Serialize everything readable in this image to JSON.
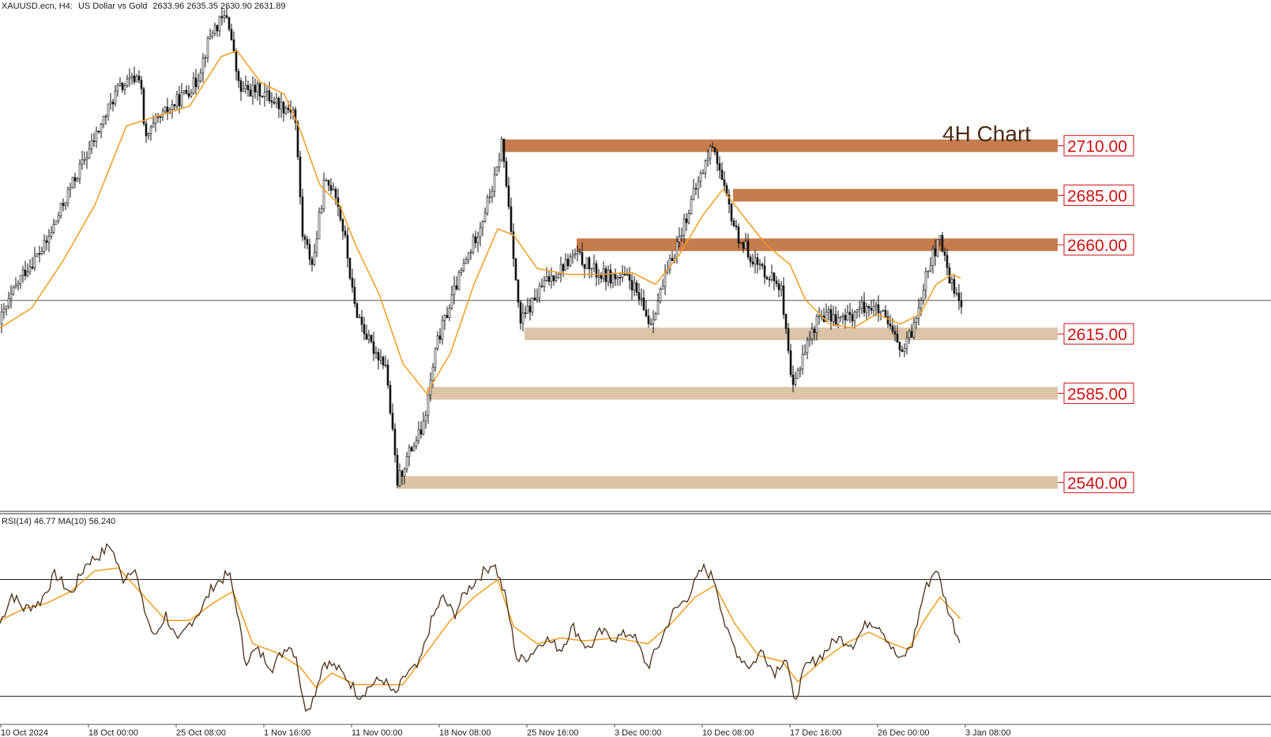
{
  "header": {
    "symbol": "XAUUSD.ecn, H4:",
    "description": "US Dollar vs Gold",
    "ohlc": "2633.96 2635.35 2630.90 2631.89"
  },
  "chart_title": "4H Chart",
  "chart_data": [
    {
      "type": "candlestick",
      "title": "4H Chart",
      "symbol": "XAUUSD.ecn",
      "timeframe": "H4",
      "ylim": [
        2527,
        2778
      ],
      "price_line": 2631.89,
      "ohlc_last": {
        "open": 2633.96,
        "high": 2635.35,
        "low": 2630.9,
        "close": 2631.89
      },
      "ma_color": "#f39c1e",
      "candle_color": "#111111",
      "x_tick_labels": [
        "10 Oct 2024",
        "18 Oct 00:00",
        "25 Oct 08:00",
        "1 Nov 16:00",
        "11 Nov 00:00",
        "18 Nov 08:00",
        "25 Nov 16:00",
        "3 Dec 00:00",
        "10 Dec 08:00",
        "17 Dec 16:00",
        "26 Dec 00:00",
        "3 Jan 08:00"
      ],
      "price_path": [
        [
          0,
          2620
        ],
        [
          30,
          2645
        ],
        [
          60,
          2660
        ],
        [
          90,
          2688
        ],
        [
          120,
          2712
        ],
        [
          150,
          2738
        ],
        [
          180,
          2746
        ],
        [
          185,
          2712
        ],
        [
          200,
          2722
        ],
        [
          220,
          2730
        ],
        [
          250,
          2742
        ],
        [
          270,
          2768
        ],
        [
          290,
          2776
        ],
        [
          305,
          2738
        ],
        [
          330,
          2738
        ],
        [
          360,
          2730
        ],
        [
          375,
          2728
        ],
        [
          385,
          2665
        ],
        [
          398,
          2650
        ],
        [
          412,
          2690
        ],
        [
          425,
          2690
        ],
        [
          440,
          2660
        ],
        [
          450,
          2630
        ],
        [
          470,
          2610
        ],
        [
          490,
          2600
        ],
        [
          505,
          2540
        ],
        [
          520,
          2555
        ],
        [
          538,
          2568
        ],
        [
          555,
          2610
        ],
        [
          580,
          2640
        ],
        [
          610,
          2670
        ],
        [
          630,
          2695
        ],
        [
          637,
          2712
        ],
        [
          650,
          2665
        ],
        [
          660,
          2620
        ],
        [
          690,
          2640
        ],
        [
          730,
          2655
        ],
        [
          760,
          2645
        ],
        [
          800,
          2642
        ],
        [
          825,
          2620
        ],
        [
          850,
          2650
        ],
        [
          880,
          2685
        ],
        [
          905,
          2712
        ],
        [
          918,
          2688
        ],
        [
          935,
          2665
        ],
        [
          960,
          2650
        ],
        [
          990,
          2640
        ],
        [
          1005,
          2585
        ],
        [
          1018,
          2605
        ],
        [
          1040,
          2625
        ],
        [
          1070,
          2622
        ],
        [
          1100,
          2630
        ],
        [
          1118,
          2625
        ],
        [
          1145,
          2605
        ],
        [
          1160,
          2620
        ],
        [
          1175,
          2648
        ],
        [
          1192,
          2662
        ],
        [
          1205,
          2642
        ],
        [
          1217,
          2632
        ]
      ],
      "ma_path": [
        [
          0,
          2618
        ],
        [
          40,
          2628
        ],
        [
          80,
          2652
        ],
        [
          120,
          2680
        ],
        [
          160,
          2720
        ],
        [
          200,
          2725
        ],
        [
          240,
          2730
        ],
        [
          280,
          2755
        ],
        [
          300,
          2758
        ],
        [
          330,
          2742
        ],
        [
          360,
          2736
        ],
        [
          380,
          2718
        ],
        [
          405,
          2690
        ],
        [
          430,
          2680
        ],
        [
          450,
          2660
        ],
        [
          480,
          2635
        ],
        [
          510,
          2600
        ],
        [
          540,
          2585
        ],
        [
          570,
          2605
        ],
        [
          600,
          2640
        ],
        [
          630,
          2668
        ],
        [
          650,
          2665
        ],
        [
          680,
          2648
        ],
        [
          720,
          2645
        ],
        [
          760,
          2645
        ],
        [
          800,
          2646
        ],
        [
          830,
          2640
        ],
        [
          860,
          2655
        ],
        [
          890,
          2675
        ],
        [
          915,
          2688
        ],
        [
          940,
          2675
        ],
        [
          970,
          2660
        ],
        [
          1000,
          2650
        ],
        [
          1020,
          2632
        ],
        [
          1050,
          2620
        ],
        [
          1080,
          2618
        ],
        [
          1110,
          2625
        ],
        [
          1140,
          2620
        ],
        [
          1165,
          2625
        ],
        [
          1185,
          2640
        ],
        [
          1205,
          2645
        ],
        [
          1217,
          2643
        ]
      ],
      "levels": [
        {
          "label": "2710.00",
          "value": 2710,
          "x_start": 636,
          "color": "#c67c4e"
        },
        {
          "label": "2685.00",
          "value": 2685,
          "x_start": 928,
          "color": "#c67c4e"
        },
        {
          "label": "2660.00",
          "value": 2660,
          "x_start": 730,
          "color": "#c67c4e"
        },
        {
          "label": "2615.00",
          "value": 2615,
          "x_start": 664,
          "color": "#dbc4a8"
        },
        {
          "label": "2585.00",
          "value": 2585,
          "x_start": 540,
          "color": "#dbc4a8"
        },
        {
          "label": "2540.00",
          "value": 2540,
          "x_start": 503,
          "color": "#dbc4a8"
        }
      ]
    },
    {
      "type": "line",
      "title": "RSI(14) 46.77 MA(10) 56.240",
      "rsi_value": 46.77,
      "ma_value": 56.24,
      "ylim": [
        22,
        88
      ],
      "levels": [
        70,
        30
      ],
      "rsi_color": "#4a2e17",
      "ma_color": "#f39c1e",
      "rsi_path": [
        [
          0,
          55
        ],
        [
          15,
          65
        ],
        [
          30,
          60
        ],
        [
          50,
          62
        ],
        [
          70,
          72
        ],
        [
          90,
          65
        ],
        [
          110,
          76
        ],
        [
          125,
          78
        ],
        [
          140,
          82
        ],
        [
          155,
          70
        ],
        [
          170,
          75
        ],
        [
          180,
          62
        ],
        [
          195,
          50
        ],
        [
          210,
          58
        ],
        [
          225,
          48
        ],
        [
          240,
          55
        ],
        [
          255,
          60
        ],
        [
          270,
          68
        ],
        [
          290,
          72
        ],
        [
          300,
          60
        ],
        [
          310,
          42
        ],
        [
          325,
          46
        ],
        [
          345,
          40
        ],
        [
          365,
          48
        ],
        [
          375,
          44
        ],
        [
          385,
          26
        ],
        [
          395,
          28
        ],
        [
          410,
          42
        ],
        [
          425,
          40
        ],
        [
          440,
          36
        ],
        [
          455,
          30
        ],
        [
          470,
          34
        ],
        [
          485,
          36
        ],
        [
          500,
          30
        ],
        [
          515,
          38
        ],
        [
          530,
          40
        ],
        [
          545,
          55
        ],
        [
          560,
          64
        ],
        [
          575,
          58
        ],
        [
          590,
          66
        ],
        [
          610,
          72
        ],
        [
          625,
          76
        ],
        [
          640,
          64
        ],
        [
          655,
          42
        ],
        [
          670,
          44
        ],
        [
          690,
          50
        ],
        [
          710,
          46
        ],
        [
          725,
          54
        ],
        [
          745,
          46
        ],
        [
          760,
          52
        ],
        [
          780,
          50
        ],
        [
          800,
          52
        ],
        [
          820,
          40
        ],
        [
          835,
          48
        ],
        [
          850,
          58
        ],
        [
          870,
          64
        ],
        [
          890,
          74
        ],
        [
          905,
          70
        ],
        [
          920,
          52
        ],
        [
          935,
          44
        ],
        [
          950,
          40
        ],
        [
          965,
          46
        ],
        [
          980,
          38
        ],
        [
          995,
          44
        ],
        [
          1005,
          28
        ],
        [
          1020,
          40
        ],
        [
          1040,
          44
        ],
        [
          1060,
          50
        ],
        [
          1080,
          48
        ],
        [
          1100,
          56
        ],
        [
          1115,
          54
        ],
        [
          1130,
          46
        ],
        [
          1140,
          42
        ],
        [
          1155,
          48
        ],
        [
          1170,
          66
        ],
        [
          1185,
          74
        ],
        [
          1200,
          60
        ],
        [
          1217,
          46.77
        ]
      ],
      "ma_path": [
        [
          0,
          56
        ],
        [
          30,
          60
        ],
        [
          60,
          62
        ],
        [
          90,
          66
        ],
        [
          120,
          73
        ],
        [
          150,
          74
        ],
        [
          180,
          65
        ],
        [
          210,
          56
        ],
        [
          240,
          56
        ],
        [
          270,
          62
        ],
        [
          295,
          66
        ],
        [
          320,
          48
        ],
        [
          350,
          45
        ],
        [
          380,
          40
        ],
        [
          400,
          33
        ],
        [
          420,
          38
        ],
        [
          450,
          34
        ],
        [
          480,
          34
        ],
        [
          510,
          34
        ],
        [
          540,
          45
        ],
        [
          570,
          56
        ],
        [
          600,
          64
        ],
        [
          630,
          70
        ],
        [
          650,
          54
        ],
        [
          680,
          48
        ],
        [
          710,
          50
        ],
        [
          740,
          49
        ],
        [
          780,
          50
        ],
        [
          820,
          48
        ],
        [
          850,
          55
        ],
        [
          880,
          64
        ],
        [
          905,
          68
        ],
        [
          930,
          55
        ],
        [
          960,
          44
        ],
        [
          990,
          42
        ],
        [
          1010,
          35
        ],
        [
          1040,
          42
        ],
        [
          1070,
          48
        ],
        [
          1100,
          52
        ],
        [
          1130,
          48
        ],
        [
          1150,
          46
        ],
        [
          1170,
          56
        ],
        [
          1190,
          64
        ],
        [
          1217,
          56.24
        ]
      ]
    }
  ]
}
